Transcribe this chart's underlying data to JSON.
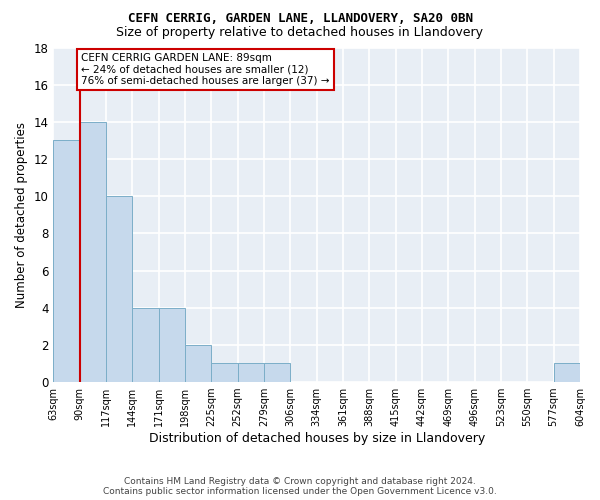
{
  "title1": "CEFN CERRIG, GARDEN LANE, LLANDOVERY, SA20 0BN",
  "title2": "Size of property relative to detached houses in Llandovery",
  "xlabel": "Distribution of detached houses by size in Llandovery",
  "ylabel": "Number of detached properties",
  "bar_values": [
    13,
    14,
    10,
    4,
    4,
    2,
    1,
    1,
    1,
    0,
    0,
    0,
    0,
    0,
    0,
    0,
    0,
    0,
    0,
    1
  ],
  "x_labels": [
    "63sqm",
    "90sqm",
    "117sqm",
    "144sqm",
    "171sqm",
    "198sqm",
    "225sqm",
    "252sqm",
    "279sqm",
    "306sqm",
    "334sqm",
    "361sqm",
    "388sqm",
    "415sqm",
    "442sqm",
    "469sqm",
    "496sqm",
    "523sqm",
    "550sqm",
    "577sqm",
    "604sqm"
  ],
  "bar_color": "#c6d9ec",
  "bar_edge_color": "#7baec8",
  "ylim": [
    0,
    18
  ],
  "yticks": [
    0,
    2,
    4,
    6,
    8,
    10,
    12,
    14,
    16,
    18
  ],
  "property_line_x": 1,
  "annotation_line1": "CEFN CERRIG GARDEN LANE: 89sqm",
  "annotation_line2": "← 24% of detached houses are smaller (12)",
  "annotation_line3": "76% of semi-detached houses are larger (37) →",
  "annotation_box_color": "#cc0000",
  "footer_line1": "Contains HM Land Registry data © Crown copyright and database right 2024.",
  "footer_line2": "Contains public sector information licensed under the Open Government Licence v3.0.",
  "background_color": "#e8eef5",
  "grid_color": "#d0d8e8",
  "spine_color": "#aaaaaa"
}
